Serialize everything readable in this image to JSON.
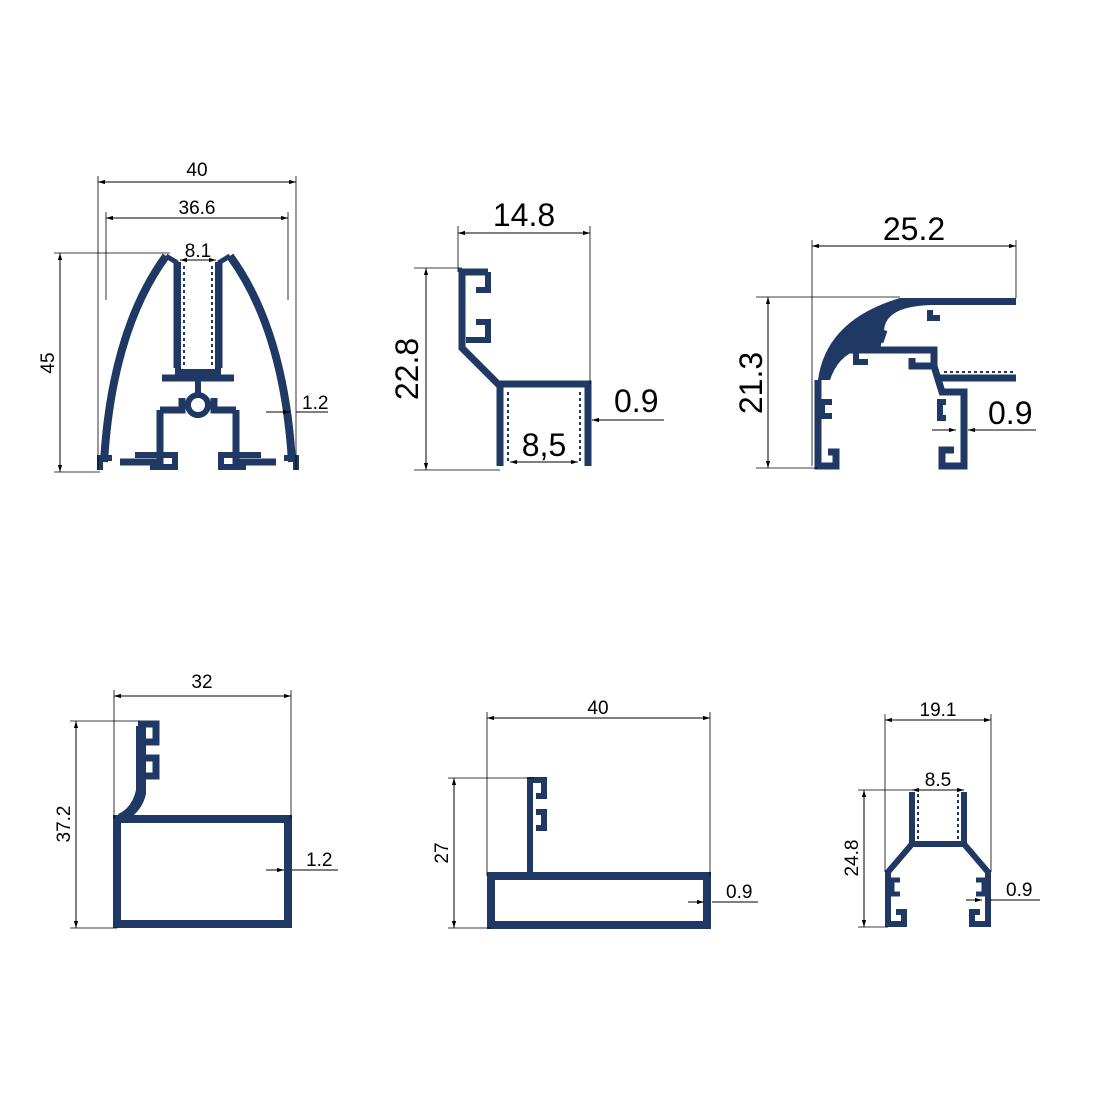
{
  "colors": {
    "profile": "#1f3864",
    "dimension": "#000000",
    "background": "#ffffff"
  },
  "profiles": [
    {
      "id": "profile-1",
      "width": "40",
      "inner_width": "36.6",
      "slot": "8.1",
      "height": "45",
      "wall": "1.2"
    },
    {
      "id": "profile-2",
      "width": "14.8",
      "height": "22.8",
      "inner": "8,5",
      "wall": "0.9"
    },
    {
      "id": "profile-3",
      "width": "25.2",
      "height": "21.3",
      "wall": "0.9"
    },
    {
      "id": "profile-4",
      "width": "32",
      "height": "37.2",
      "wall": "1.2"
    },
    {
      "id": "profile-5",
      "width": "40",
      "height": "27",
      "wall": "0.9"
    },
    {
      "id": "profile-6",
      "width": "19.1",
      "inner": "8.5",
      "height": "24.8",
      "wall": "0.9"
    }
  ]
}
